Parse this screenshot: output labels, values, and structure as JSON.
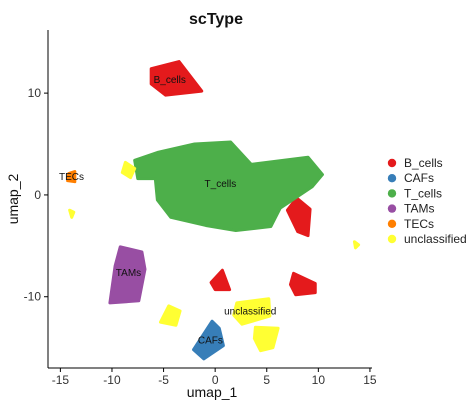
{
  "chart_data": {
    "type": "scatter",
    "title": "scType",
    "xlabel": "umap_1",
    "ylabel": "umap_2",
    "xlim": [
      -16.2,
      15.2
    ],
    "ylim": [
      -17.0,
      16.2
    ],
    "x_ticks": [
      -15,
      -10,
      -5,
      0,
      5,
      10,
      15
    ],
    "y_ticks": [
      -10,
      0,
      10
    ],
    "grid": false,
    "legend_position": "right",
    "series": [
      {
        "name": "B_cells",
        "color": "#E41A1C",
        "clusters": [
          {
            "label": "B_cells",
            "shape": [
              [
                -6.2,
                12.4
              ],
              [
                -3.5,
                13.1
              ],
              [
                -1.3,
                10.2
              ],
              [
                -4.8,
                9.8
              ],
              [
                -6.2,
                10.9
              ]
            ]
          },
          {
            "label": "",
            "shape": [
              [
                7.9,
                -0.3
              ],
              [
                9.2,
                -1.4
              ],
              [
                9.0,
                -4.0
              ],
              [
                8.0,
                -3.6
              ],
              [
                7.0,
                -1.5
              ]
            ]
          },
          {
            "label": "",
            "shape": [
              [
                0.7,
                -7.4
              ],
              [
                1.4,
                -9.3
              ],
              [
                0.0,
                -9.3
              ],
              [
                -0.4,
                -8.6
              ]
            ]
          },
          {
            "label": "",
            "shape": [
              [
                7.6,
                -7.7
              ],
              [
                9.7,
                -8.7
              ],
              [
                9.7,
                -9.6
              ],
              [
                7.8,
                -9.8
              ],
              [
                7.3,
                -8.8
              ]
            ]
          }
        ]
      },
      {
        "name": "CAFs",
        "color": "#377EB8",
        "clusters": [
          {
            "label": "CAFs",
            "shape": [
              [
                -0.3,
                -12.4
              ],
              [
                0.4,
                -13.1
              ],
              [
                0.8,
                -14.8
              ],
              [
                -1.1,
                -16.1
              ],
              [
                -2.1,
                -15.2
              ]
            ]
          }
        ]
      },
      {
        "name": "T_cells",
        "color": "#4DAF4A",
        "clusters": [
          {
            "label": "T_cells",
            "shape": [
              [
                -7.8,
                3.4
              ],
              [
                -5.5,
                4.2
              ],
              [
                -2.0,
                5.0
              ],
              [
                1.5,
                5.2
              ],
              [
                3.5,
                3.0
              ],
              [
                9.0,
                3.7
              ],
              [
                10.4,
                2.0
              ],
              [
                9.4,
                0.8
              ],
              [
                6.3,
                -1.3
              ],
              [
                5.4,
                -3.1
              ],
              [
                2.0,
                -3.5
              ],
              [
                -0.9,
                -3.0
              ],
              [
                -4.3,
                -2.2
              ],
              [
                -5.6,
                -0.5
              ],
              [
                -5.8,
                1.6
              ],
              [
                -7.5,
                1.6
              ]
            ]
          }
        ]
      },
      {
        "name": "TAMs",
        "color": "#984EA3",
        "clusters": [
          {
            "label": "TAMs",
            "shape": [
              [
                -9.2,
                -5.1
              ],
              [
                -7.1,
                -5.6
              ],
              [
                -6.8,
                -7.3
              ],
              [
                -7.4,
                -10.4
              ],
              [
                -10.2,
                -10.6
              ],
              [
                -9.7,
                -7.0
              ]
            ]
          }
        ]
      },
      {
        "name": "TECs",
        "color": "#FF7F00",
        "clusters": [
          {
            "label": "TECs",
            "shape": [
              [
                -14.2,
                2.1
              ],
              [
                -13.6,
                2.3
              ],
              [
                -13.6,
                1.3
              ],
              [
                -14.3,
                1.4
              ]
            ]
          }
        ]
      },
      {
        "name": "unclassified",
        "color": "#FFFF33",
        "clusters": [
          {
            "label": "",
            "shape": [
              [
                -8.7,
                3.2
              ],
              [
                -7.8,
                2.6
              ],
              [
                -8.2,
                1.7
              ],
              [
                -9.0,
                2.2
              ]
            ]
          },
          {
            "label": "",
            "shape": [
              [
                -4.5,
                -10.9
              ],
              [
                -3.4,
                -11.4
              ],
              [
                -3.8,
                -12.8
              ],
              [
                -5.3,
                -12.5
              ]
            ]
          },
          {
            "label": "unclassified",
            "shape": [
              [
                2.1,
                -10.6
              ],
              [
                5.2,
                -10.2
              ],
              [
                5.3,
                -11.9
              ],
              [
                2.6,
                -12.7
              ],
              [
                1.8,
                -11.8
              ]
            ]
          },
          {
            "label": "",
            "shape": [
              [
                3.9,
                -13.0
              ],
              [
                6.1,
                -13.1
              ],
              [
                5.6,
                -15.0
              ],
              [
                4.4,
                -15.3
              ],
              [
                3.8,
                -14.1
              ]
            ]
          },
          {
            "label": "",
            "shape": [
              [
                -14.1,
                -1.5
              ],
              [
                -13.7,
                -1.7
              ],
              [
                -13.9,
                -2.2
              ]
            ]
          },
          {
            "label": "",
            "shape": [
              [
                13.5,
                -4.6
              ],
              [
                13.9,
                -4.9
              ],
              [
                13.6,
                -5.2
              ]
            ]
          }
        ]
      }
    ]
  }
}
